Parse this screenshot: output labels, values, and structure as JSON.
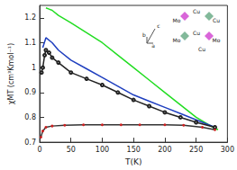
{
  "chart_data": {
    "type": "line",
    "x_label": "T(K)",
    "y_label": "χMT (cm³Kmol⁻¹)",
    "xlim": [
      0,
      300
    ],
    "xticks": [
      0,
      50,
      100,
      150,
      200,
      250,
      300
    ],
    "ylim": [
      0.7,
      1.25
    ],
    "yticks": [
      0.7,
      0.8,
      0.9,
      1.0,
      1.1,
      1.2
    ],
    "grid": false,
    "annotations": [
      "Mo",
      "Cu",
      "Cu",
      "Mo",
      "Cu",
      "Mo",
      "Cu",
      "a",
      "b",
      "c"
    ],
    "series": [
      {
        "color": "#22dd22",
        "marker": "none",
        "line_style": "solid",
        "x": [
          10,
          15,
          20,
          30,
          50,
          75,
          100,
          125,
          150,
          175,
          200,
          225,
          250,
          270,
          285
        ],
        "values": [
          1.24,
          1.235,
          1.23,
          1.21,
          1.18,
          1.14,
          1.1,
          1.05,
          1.0,
          0.95,
          0.9,
          0.85,
          0.8,
          0.77,
          0.75
        ]
      },
      {
        "color": "#1f3fbf",
        "marker": "none",
        "line_style": "solid",
        "x": [
          5,
          10,
          20,
          30,
          50,
          75,
          100,
          125,
          150,
          175,
          200,
          225,
          250,
          280
        ],
        "values": [
          1.08,
          1.12,
          1.1,
          1.07,
          1.03,
          0.995,
          0.96,
          0.925,
          0.89,
          0.865,
          0.84,
          0.815,
          0.79,
          0.76
        ]
      },
      {
        "color": "#222222",
        "marker": "open_circle",
        "line_style": "solid",
        "x": [
          3,
          5,
          8,
          10,
          15,
          20,
          30,
          50,
          75,
          100,
          125,
          150,
          175,
          200,
          225,
          250,
          280
        ],
        "values": [
          0.98,
          1.0,
          1.05,
          1.07,
          1.06,
          1.04,
          1.02,
          0.98,
          0.955,
          0.93,
          0.9,
          0.87,
          0.845,
          0.82,
          0.8,
          0.78,
          0.76
        ]
      },
      {
        "color": "#cc2020",
        "marker": "circle",
        "line_style": "solid",
        "x": [
          2,
          5,
          10,
          20,
          40,
          70,
          100,
          130,
          160,
          200,
          230,
          260,
          280
        ],
        "values": [
          0.72,
          0.745,
          0.76,
          0.765,
          0.768,
          0.77,
          0.77,
          0.77,
          0.77,
          0.77,
          0.768,
          0.76,
          0.75
        ]
      }
    ]
  }
}
